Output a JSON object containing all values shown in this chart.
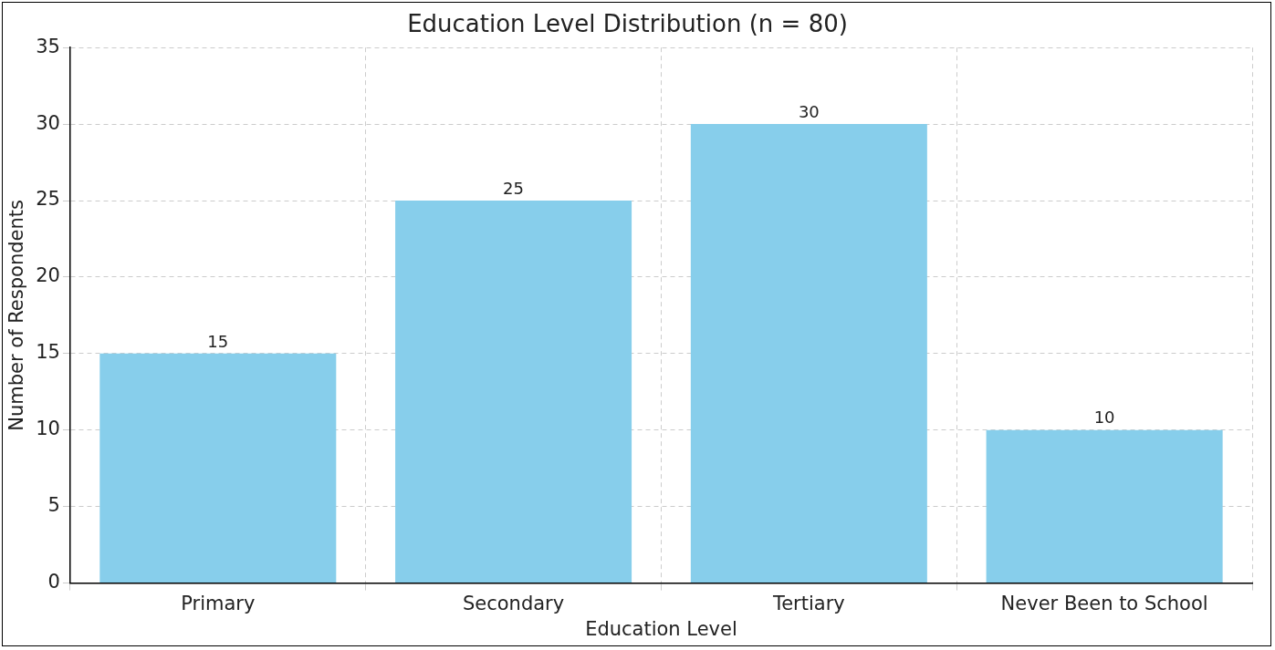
{
  "chart_data": {
    "type": "bar",
    "title": "Education Level Distribution (n = 80)",
    "xlabel": "Education Level",
    "ylabel": "Number of Respondents",
    "categories": [
      "Primary",
      "Secondary",
      "Tertiary",
      "Never Been to School"
    ],
    "values": [
      15,
      25,
      30,
      10
    ],
    "color": "#87ceeb",
    "ylim": [
      0,
      35
    ],
    "yticks": [
      0,
      5,
      10,
      15,
      20,
      25,
      30,
      35
    ],
    "grid": true,
    "data_labels": true
  }
}
